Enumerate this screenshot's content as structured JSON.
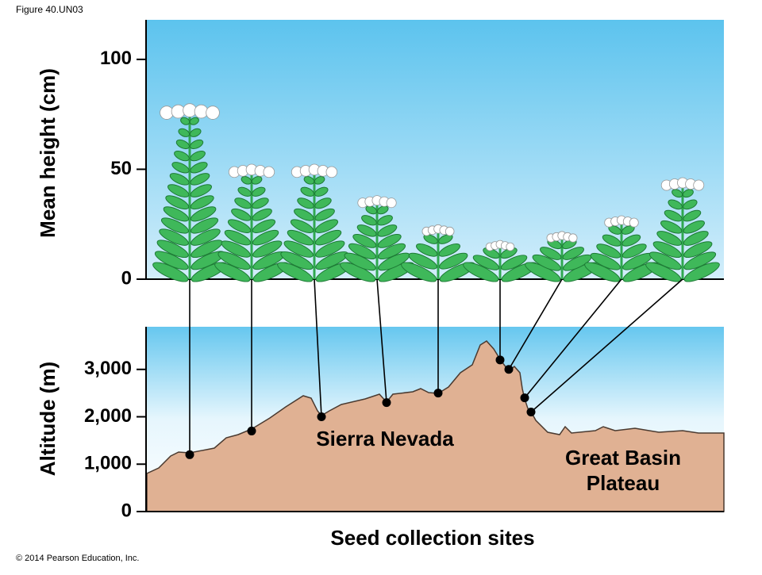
{
  "figure_label": "Figure 40.UN03",
  "copyright": "© 2014 Pearson Education, Inc.",
  "chart_data": [
    {
      "type": "pictogram",
      "ylabel": "Mean height (cm)",
      "values": [
        79,
        52,
        52,
        38,
        25,
        18,
        22,
        29,
        46
      ],
      "ylim": [
        0,
        118
      ],
      "yticks": [
        0,
        50,
        100
      ],
      "color": "#2fa84f"
    },
    {
      "type": "profile",
      "ylabel": "Altitude (m)",
      "xlabel": "Seed collection sites",
      "values": [
        1200,
        1700,
        2000,
        2300,
        2500,
        3200,
        3000,
        2400,
        2100
      ],
      "ylim": [
        0,
        3900
      ],
      "yticks": [
        0,
        {
          "value": 1000,
          "label": "1,000"
        },
        {
          "value": 2000,
          "label": "2,000"
        },
        {
          "value": 3000,
          "label": "3,000"
        }
      ],
      "color": "#000000",
      "annotations": [
        {
          "lines": [
            "Sierra Nevada"
          ]
        },
        {
          "lines": [
            "Great Basin",
            "Plateau"
          ]
        }
      ]
    }
  ]
}
